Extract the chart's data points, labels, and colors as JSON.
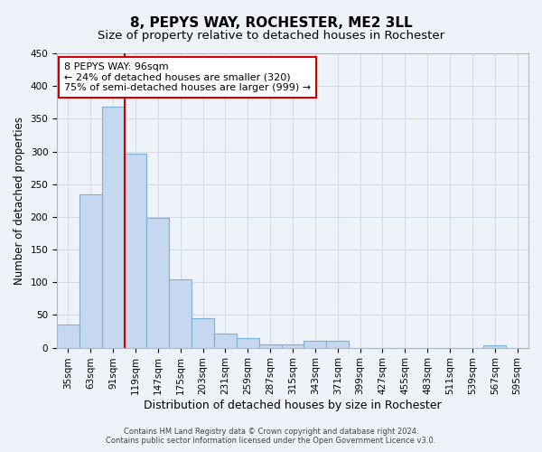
{
  "title": "8, PEPYS WAY, ROCHESTER, ME2 3LL",
  "subtitle": "Size of property relative to detached houses in Rochester",
  "xlabel": "Distribution of detached houses by size in Rochester",
  "ylabel": "Number of detached properties",
  "categories": [
    "35sqm",
    "63sqm",
    "91sqm",
    "119sqm",
    "147sqm",
    "175sqm",
    "203sqm",
    "231sqm",
    "259sqm",
    "287sqm",
    "315sqm",
    "343sqm",
    "371sqm",
    "399sqm",
    "427sqm",
    "455sqm",
    "483sqm",
    "511sqm",
    "539sqm",
    "567sqm",
    "595sqm"
  ],
  "values": [
    35,
    235,
    368,
    297,
    199,
    105,
    45,
    22,
    14,
    5,
    5,
    10,
    10,
    0,
    0,
    0,
    0,
    0,
    0,
    4,
    0
  ],
  "bar_color": "#c5d8f0",
  "bar_edge_color": "#7bafd4",
  "background_color": "#eef2f9",
  "grid_color": "#d0d8e8",
  "property_line_color": "#cc0000",
  "property_line_x": 2.5,
  "annotation_text_line1": "8 PEPYS WAY: 96sqm",
  "annotation_text_line2": "← 24% of detached houses are smaller (320)",
  "annotation_text_line3": "75% of semi-detached houses are larger (999) →",
  "annotation_box_color": "#ffffff",
  "annotation_box_edge": "#cc0000",
  "footer_line1": "Contains HM Land Registry data © Crown copyright and database right 2024.",
  "footer_line2": "Contains public sector information licensed under the Open Government Licence v3.0.",
  "ylim": [
    0,
    450
  ],
  "yticks": [
    0,
    50,
    100,
    150,
    200,
    250,
    300,
    350,
    400,
    450
  ],
  "title_fontsize": 11,
  "subtitle_fontsize": 9.5,
  "ylabel_fontsize": 8.5,
  "xlabel_fontsize": 9,
  "tick_fontsize": 7.5,
  "footer_fontsize": 6,
  "annot_fontsize": 8
}
